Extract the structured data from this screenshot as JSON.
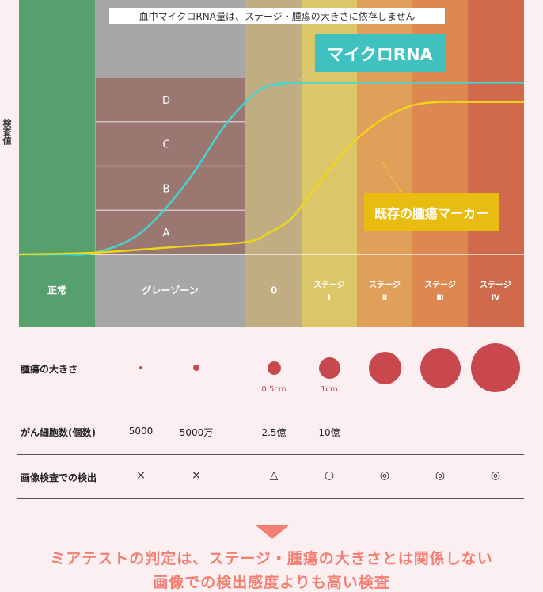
{
  "chart_data": {
    "type": "line",
    "ylabel": "検査値",
    "annotation": "血中マイクロRNA量は、ステージ・腫瘍の大きさに依存しません",
    "stages": [
      {
        "label": "正常",
        "color": "#55a06c"
      },
      {
        "label": "グレーゾーン",
        "color": "#a7a7a7"
      },
      {
        "label": "0",
        "color": "#c0ad82"
      },
      {
        "label": "ステージ\nⅠ",
        "color": "#dbc769"
      },
      {
        "label": "ステージ\nⅡ",
        "color": "#e0a05a"
      },
      {
        "label": "ステージ\nⅢ",
        "color": "#dd8850"
      },
      {
        "label": "ステージ\nⅣ",
        "color": "#cf6a4c"
      }
    ],
    "grayzone_levels": [
      "A",
      "B",
      "C",
      "D"
    ],
    "series": [
      {
        "name": "マイクロRNA",
        "color": "#3fd8d2",
        "points": [
          [
            0,
            0.0
          ],
          [
            0.5,
            0.0
          ],
          [
            1,
            0.01
          ],
          [
            1.3,
            0.12
          ],
          [
            1.6,
            0.4
          ],
          [
            1.85,
            0.72
          ],
          [
            2.1,
            0.9
          ],
          [
            2.4,
            0.96
          ],
          [
            2.7,
            0.975
          ],
          [
            3,
            0.98
          ],
          [
            7,
            0.98
          ]
        ]
      },
      {
        "name": "既存の腫瘍マーカー",
        "color": "#f0d616",
        "points": [
          [
            0,
            0.0
          ],
          [
            1,
            0.01
          ],
          [
            1.5,
            0.04
          ],
          [
            2,
            0.07
          ],
          [
            2.4,
            0.12
          ],
          [
            2.8,
            0.2
          ],
          [
            3.2,
            0.36
          ],
          [
            3.6,
            0.52
          ],
          [
            4,
            0.66
          ],
          [
            4.5,
            0.78
          ],
          [
            5,
            0.85
          ],
          [
            5.5,
            0.87
          ],
          [
            6,
            0.87
          ],
          [
            7,
            0.87
          ]
        ]
      }
    ]
  },
  "table": {
    "rows": [
      {
        "label": "腫瘍の大きさ"
      },
      {
        "label": "がん細胞数(個数)",
        "values": [
          "5000",
          "5000万",
          "2.5億",
          "10億",
          "",
          "",
          ""
        ]
      },
      {
        "label": "画像検査での検出",
        "values": [
          "×",
          "×",
          "△",
          "○",
          "◎",
          "◎",
          "◎"
        ]
      }
    ],
    "size_labels": [
      "",
      "",
      "0.5cm",
      "1cm",
      "",
      "",
      ""
    ]
  },
  "conclusion": {
    "line1": "ミアテストの判定は、ステージ・腫瘍の大きさとは関係しない",
    "line2": "画像での検出感度よりも高い検査"
  }
}
